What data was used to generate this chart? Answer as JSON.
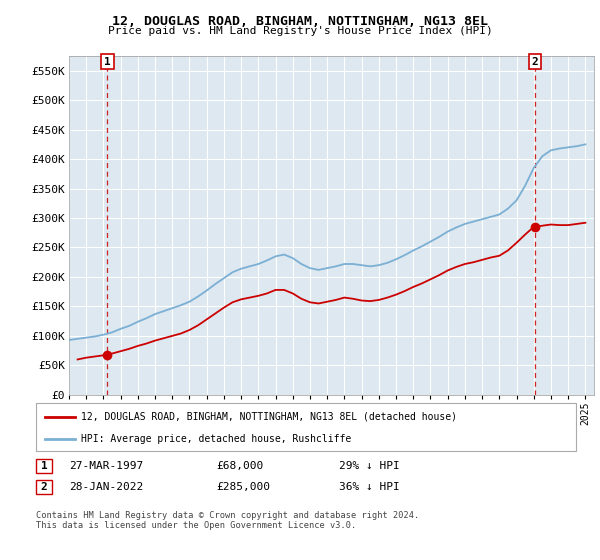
{
  "title": "12, DOUGLAS ROAD, BINGHAM, NOTTINGHAM, NG13 8EL",
  "subtitle": "Price paid vs. HM Land Registry's House Price Index (HPI)",
  "legend_line1": "12, DOUGLAS ROAD, BINGHAM, NOTTINGHAM, NG13 8EL (detached house)",
  "legend_line2": "HPI: Average price, detached house, Rushcliffe",
  "footnote": "Contains HM Land Registry data © Crown copyright and database right 2024.\nThis data is licensed under the Open Government Licence v3.0.",
  "hpi_color": "#7bafd4",
  "price_color": "#cc0000",
  "marker_color": "#cc0000",
  "dashed_line_color": "#cc0000",
  "background_plot": "#dde8f0",
  "grid_color": "#ffffff",
  "ylim": [
    0,
    575000
  ],
  "yticks": [
    0,
    50000,
    100000,
    150000,
    200000,
    250000,
    300000,
    350000,
    400000,
    450000,
    500000,
    550000
  ],
  "ytick_labels": [
    "£0",
    "£50K",
    "£100K",
    "£150K",
    "£200K",
    "£250K",
    "£300K",
    "£350K",
    "£400K",
    "£450K",
    "£500K",
    "£550K"
  ],
  "sale1": {
    "date_x": 1997.23,
    "price": 68000,
    "label": "1",
    "date_str": "27-MAR-1997",
    "price_str": "£68,000",
    "note": "29% ↓ HPI"
  },
  "sale2": {
    "date_x": 2022.08,
    "price": 285000,
    "label": "2",
    "date_str": "28-JAN-2022",
    "price_str": "£285,000",
    "note": "36% ↓ HPI"
  },
  "xmin": 1995.0,
  "xmax": 2025.5,
  "xtick_years": [
    1995,
    1996,
    1997,
    1998,
    1999,
    2000,
    2001,
    2002,
    2003,
    2004,
    2005,
    2006,
    2007,
    2008,
    2009,
    2010,
    2011,
    2012,
    2013,
    2014,
    2015,
    2016,
    2017,
    2018,
    2019,
    2020,
    2021,
    2022,
    2023,
    2024,
    2025
  ],
  "hpi_years": [
    1995,
    1995.5,
    1996,
    1996.5,
    1997,
    1997.5,
    1998,
    1998.5,
    1999,
    1999.5,
    2000,
    2000.5,
    2001,
    2001.5,
    2002,
    2002.5,
    2003,
    2003.5,
    2004,
    2004.5,
    2005,
    2005.5,
    2006,
    2006.5,
    2007,
    2007.5,
    2008,
    2008.5,
    2009,
    2009.5,
    2010,
    2010.5,
    2011,
    2011.5,
    2012,
    2012.5,
    2013,
    2013.5,
    2014,
    2014.5,
    2015,
    2015.5,
    2016,
    2016.5,
    2017,
    2017.5,
    2018,
    2018.5,
    2019,
    2019.5,
    2020,
    2020.5,
    2021,
    2021.5,
    2022,
    2022.5,
    2023,
    2023.5,
    2024,
    2024.5,
    2025
  ],
  "hpi_values": [
    93000,
    95000,
    97000,
    99000,
    102000,
    106000,
    112000,
    117000,
    124000,
    130000,
    137000,
    142000,
    147000,
    152000,
    158000,
    167000,
    177000,
    188000,
    198000,
    208000,
    214000,
    218000,
    222000,
    228000,
    235000,
    238000,
    232000,
    222000,
    215000,
    212000,
    215000,
    218000,
    222000,
    222000,
    220000,
    218000,
    220000,
    224000,
    230000,
    237000,
    245000,
    252000,
    260000,
    268000,
    277000,
    284000,
    290000,
    294000,
    298000,
    302000,
    306000,
    316000,
    330000,
    355000,
    385000,
    405000,
    415000,
    418000,
    420000,
    422000,
    425000
  ],
  "price_years": [
    1995.5,
    1996,
    1996.5,
    1997,
    1997.23,
    1997.5,
    1998,
    1998.5,
    1999,
    1999.5,
    2000,
    2000.5,
    2001,
    2001.5,
    2002,
    2002.5,
    2003,
    2003.5,
    2004,
    2004.5,
    2005,
    2005.5,
    2006,
    2006.5,
    2007,
    2007.5,
    2008,
    2008.5,
    2009,
    2009.5,
    2010,
    2010.5,
    2011,
    2011.5,
    2012,
    2012.5,
    2013,
    2013.5,
    2014,
    2014.5,
    2015,
    2015.5,
    2016,
    2016.5,
    2017,
    2017.5,
    2018,
    2018.5,
    2019,
    2019.5,
    2020,
    2020.5,
    2021,
    2021.5,
    2022,
    2022.08,
    2022.5,
    2023,
    2023.5,
    2024,
    2024.5,
    2025
  ],
  "price_values": [
    60000,
    63000,
    65000,
    67000,
    68000,
    70000,
    74000,
    78000,
    83000,
    87000,
    92000,
    96000,
    100000,
    104000,
    110000,
    118000,
    128000,
    138000,
    148000,
    157000,
    162000,
    165000,
    168000,
    172000,
    178000,
    178000,
    172000,
    163000,
    157000,
    155000,
    158000,
    161000,
    165000,
    163000,
    160000,
    159000,
    161000,
    165000,
    170000,
    176000,
    183000,
    189000,
    196000,
    203000,
    211000,
    217000,
    222000,
    225000,
    229000,
    233000,
    236000,
    245000,
    258000,
    272000,
    285000,
    285000,
    287000,
    289000,
    288000,
    288000,
    290000,
    292000
  ]
}
